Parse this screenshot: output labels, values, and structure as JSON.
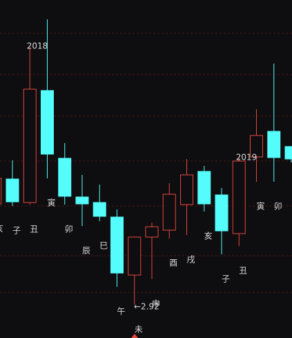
{
  "chart_data": {
    "type": "candlestick",
    "categories": [
      "亥",
      "子",
      "丑",
      "寅",
      "卯",
      "辰",
      "巳",
      "午",
      "未",
      "申",
      "酉",
      "戌",
      "亥",
      "子",
      "丑",
      "寅",
      "卯",
      null
    ],
    "open": [
      4.38,
      4.74,
      4.4,
      6.02,
      5.04,
      4.48,
      4.4,
      4.19,
      3.35,
      3.9,
      4.0,
      4.37,
      4.85,
      4.51,
      3.95,
      5.06,
      5.43,
      5.21
    ],
    "close": [
      4.75,
      4.41,
      6.04,
      5.1,
      4.49,
      4.38,
      4.2,
      3.38,
      3.9,
      4.05,
      4.52,
      4.8,
      4.38,
      3.99,
      5.0,
      5.37,
      5.05,
      5.03
    ],
    "high": [
      4.75,
      5.01,
      6.65,
      7.05,
      5.26,
      4.8,
      4.66,
      4.3,
      3.9,
      4.11,
      4.68,
      5.03,
      4.93,
      4.61,
      5.05,
      5.75,
      6.41,
      5.21
    ],
    "low": [
      4.38,
      4.35,
      4.37,
      4.75,
      4.37,
      4.06,
      4.13,
      3.18,
      2.92,
      3.29,
      3.88,
      3.93,
      4.27,
      3.65,
      3.77,
      4.7,
      4.7,
      4.98
    ],
    "up_color": "#e8473f",
    "down_color": "#54fcfc",
    "ylim": [
      2.44,
      7.33
    ],
    "annotations": [
      "2018",
      "2019",
      "←2.92"
    ]
  }
}
